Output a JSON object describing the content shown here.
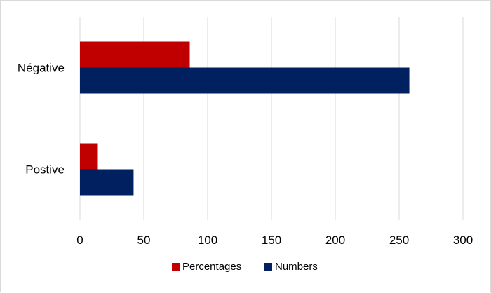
{
  "chart_data": {
    "type": "bar",
    "orientation": "horizontal",
    "categories": [
      "Négative",
      "Postive"
    ],
    "series": [
      {
        "name": "Percentages",
        "values": [
          86,
          14
        ],
        "color": "#c00000"
      },
      {
        "name": "Numbers",
        "values": [
          258,
          42
        ],
        "color": "#002060"
      }
    ],
    "xlim": [
      0,
      300
    ],
    "x_ticks": [
      0,
      50,
      100,
      150,
      200,
      250,
      300
    ],
    "grid": true,
    "legend_position": "bottom-center"
  }
}
